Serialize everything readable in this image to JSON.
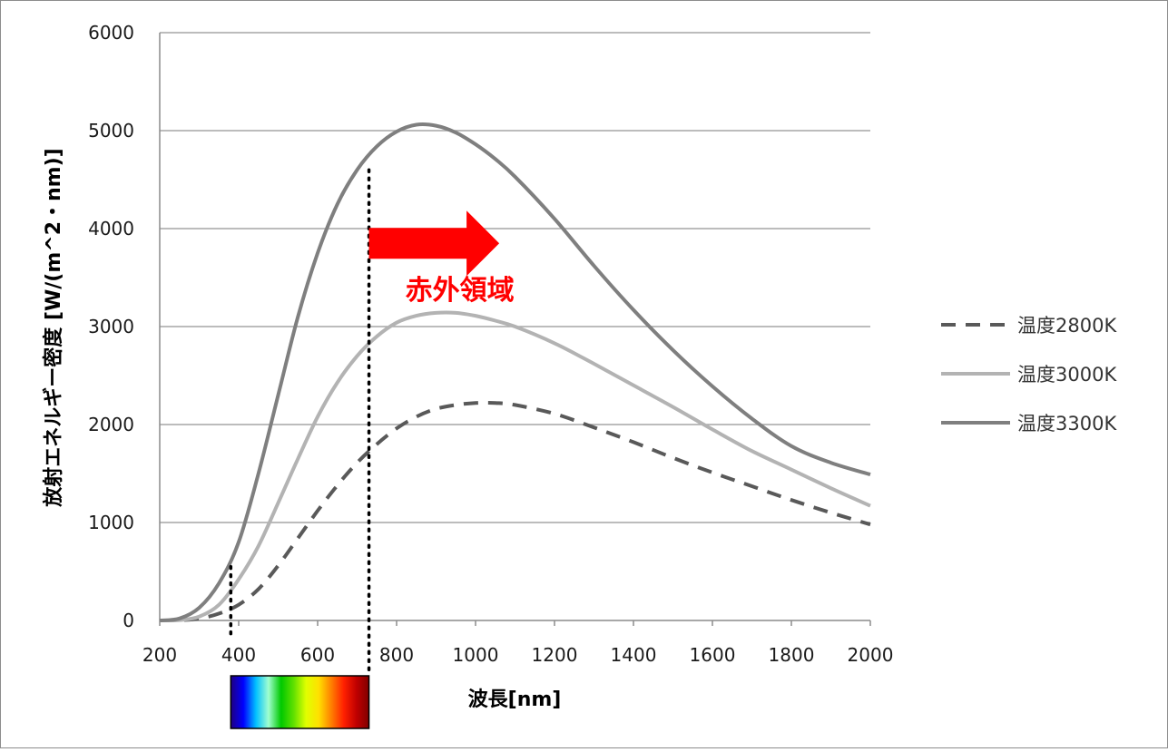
{
  "colors": {
    "grid": "#a6a6a6",
    "axis": "#8c8c8c",
    "annotation": "#ff0000",
    "spectrum": [
      "#200080",
      "#0000ff",
      "#00c0ff",
      "#a0ffd0",
      "#00c800",
      "#60e000",
      "#e0ff00",
      "#ffe000",
      "#ff8000",
      "#ff2000",
      "#c00000",
      "#800000"
    ]
  },
  "chart_data": {
    "type": "line",
    "xlabel": "波長[nm]",
    "ylabel": "放射エネルギー密度 [W/(m^2・nm)]",
    "xlim": [
      200,
      2000
    ],
    "ylim": [
      0,
      6000
    ],
    "xticks": [
      200,
      400,
      600,
      800,
      1000,
      1200,
      1400,
      1600,
      1800,
      2000
    ],
    "yticks": [
      0,
      1000,
      2000,
      3000,
      4000,
      5000,
      6000
    ],
    "grid": true,
    "legend_position": "right",
    "x": [
      200,
      250,
      300,
      350,
      400,
      450,
      500,
      550,
      600,
      650,
      700,
      750,
      800,
      850,
      900,
      950,
      1000,
      1050,
      1100,
      1200,
      1300,
      1400,
      1500,
      1600,
      1700,
      1800,
      1900,
      2000
    ],
    "series": [
      {
        "name": "温度2800K",
        "style": "dashed",
        "color": "#595959",
        "values": [
          0,
          2,
          20,
          70,
          160,
          320,
          560,
          840,
          1120,
          1380,
          1610,
          1800,
          1960,
          2080,
          2160,
          2200,
          2220,
          2220,
          2200,
          2110,
          1970,
          1820,
          1660,
          1510,
          1370,
          1230,
          1100,
          980
        ]
      },
      {
        "name": "温度3000K",
        "style": "solid",
        "color": "#b3b3b3",
        "values": [
          0,
          4,
          40,
          160,
          420,
          760,
          1200,
          1650,
          2080,
          2430,
          2700,
          2900,
          3040,
          3110,
          3140,
          3140,
          3110,
          3060,
          3000,
          2830,
          2620,
          2400,
          2180,
          1950,
          1730,
          1540,
          1350,
          1170
        ]
      },
      {
        "name": "温度3300K",
        "style": "solid",
        "color": "#7f7f7f",
        "values": [
          0,
          20,
          130,
          380,
          800,
          1500,
          2300,
          3100,
          3750,
          4250,
          4600,
          4840,
          4990,
          5060,
          5050,
          4980,
          4860,
          4710,
          4530,
          4100,
          3620,
          3170,
          2760,
          2390,
          2060,
          1780,
          1610,
          1490
        ]
      }
    ],
    "annotations": {
      "visible_lower_nm": 380,
      "visible_upper_nm": 730,
      "arrow_start_nm": 730,
      "arrow_end_nm": 1060,
      "arrow_y": 3850,
      "infrared_label": "赤外領域",
      "infrared_label_x_nm": 960,
      "infrared_label_y": 3400
    }
  }
}
